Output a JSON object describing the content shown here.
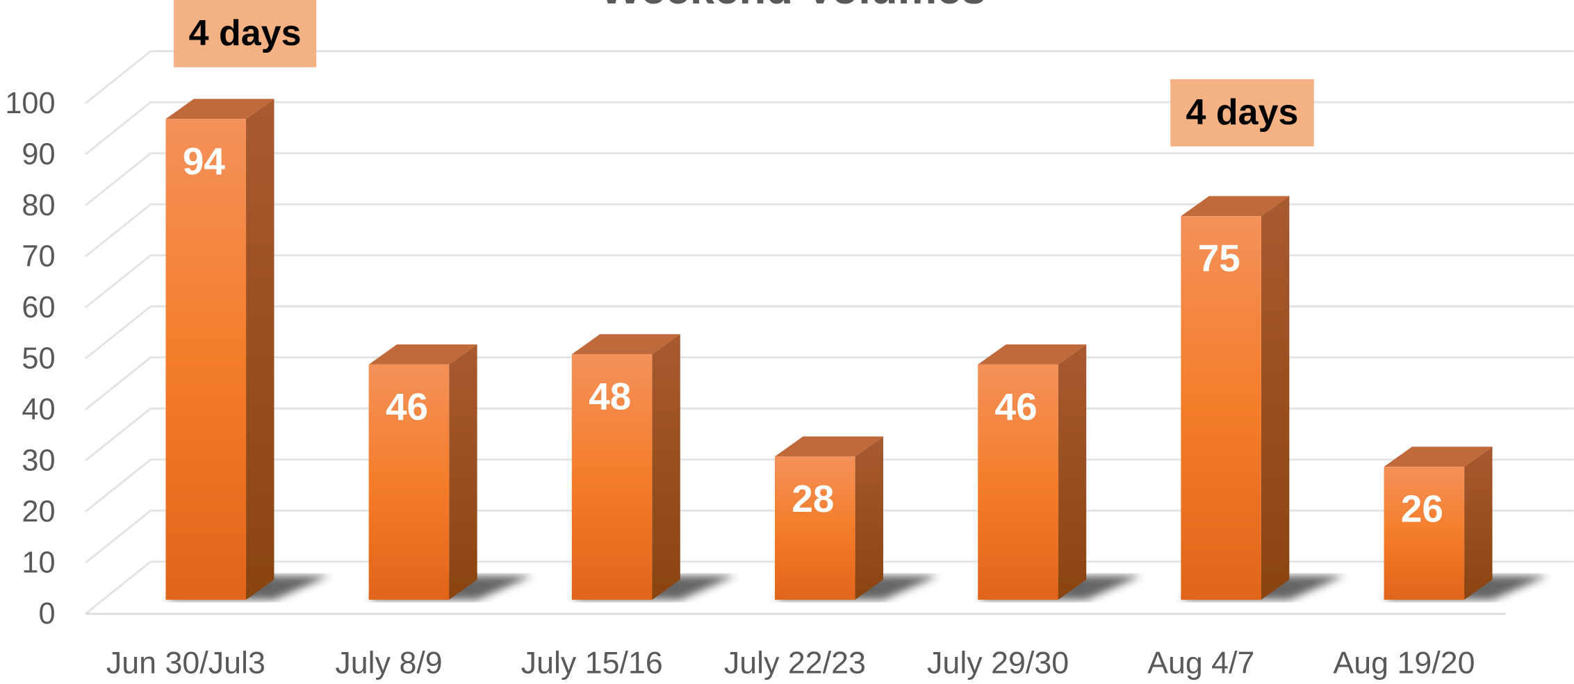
{
  "chart_data": {
    "type": "bar3d",
    "title": "Weekend Volumes",
    "categories": [
      "Jun 30/Jul3",
      "July 8/9",
      "July 15/16",
      "July 22/23",
      "July 29/30",
      "Aug 4/7",
      "Aug 19/20"
    ],
    "values": [
      94,
      46,
      48,
      28,
      46,
      75,
      26
    ],
    "color": "#f47d2a",
    "ylim": [
      0,
      100
    ],
    "yticks": [
      0,
      10,
      20,
      30,
      40,
      50,
      60,
      70,
      80,
      90,
      100
    ],
    "grid": true,
    "annotations": [
      "4 days",
      "4 days"
    ]
  }
}
